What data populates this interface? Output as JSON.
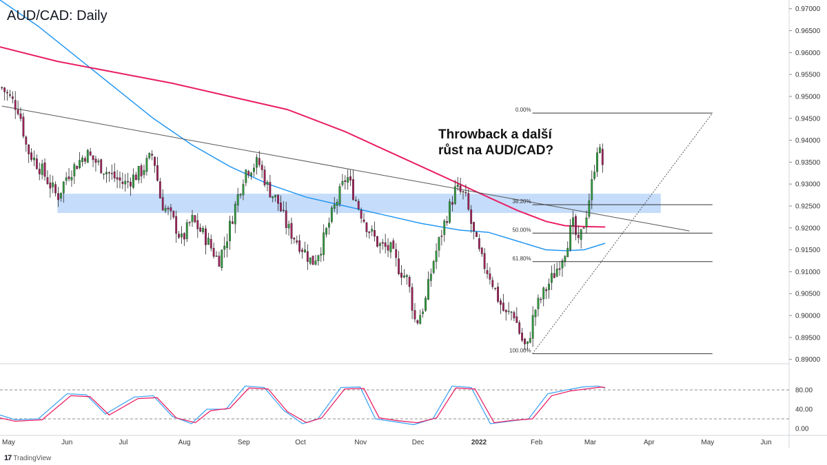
{
  "chart_data": {
    "type": "candlestick",
    "title": "AUD/CAD: Daily",
    "annotation": [
      "Throwback a další",
      "růst na AUD/CAD?"
    ],
    "ylim": [
      0.889,
      0.972
    ],
    "y_ticks": [
      0.97,
      0.965,
      0.96,
      0.955,
      0.95,
      0.945,
      0.94,
      0.935,
      0.93,
      0.925,
      0.92,
      0.915,
      0.91,
      0.905,
      0.9,
      0.895,
      0.89
    ],
    "x_labels": [
      {
        "label": "May",
        "day": 0
      },
      {
        "label": "Jun",
        "day": 31
      },
      {
        "label": "Jul",
        "day": 61
      },
      {
        "label": "Aug",
        "day": 92
      },
      {
        "label": "Sep",
        "day": 123
      },
      {
        "label": "Oct",
        "day": 153
      },
      {
        "label": "Nov",
        "day": 184
      },
      {
        "label": "Dec",
        "day": 214
      },
      {
        "label": "2022",
        "day": 245
      },
      {
        "label": "Feb",
        "day": 276
      },
      {
        "label": "Mar",
        "day": 304
      },
      {
        "label": "Apr",
        "day": 335
      },
      {
        "label": "May",
        "day": 365
      },
      {
        "label": "Jun",
        "day": 396
      }
    ],
    "x_domain": [
      0,
      412
    ],
    "close_path": [
      [
        1,
        0.952
      ],
      [
        10,
        0.947
      ],
      [
        14,
        0.938
      ],
      [
        22,
        0.933
      ],
      [
        30,
        0.927
      ],
      [
        35,
        0.932
      ],
      [
        45,
        0.937
      ],
      [
        58,
        0.932
      ],
      [
        65,
        0.93
      ],
      [
        74,
        0.933
      ],
      [
        80,
        0.937
      ],
      [
        84,
        0.926
      ],
      [
        90,
        0.922
      ],
      [
        95,
        0.917
      ],
      [
        100,
        0.922
      ],
      [
        107,
        0.918
      ],
      [
        114,
        0.9125
      ],
      [
        118,
        0.917
      ],
      [
        124,
        0.927
      ],
      [
        128,
        0.933
      ],
      [
        135,
        0.935
      ],
      [
        140,
        0.929
      ],
      [
        145,
        0.926
      ],
      [
        150,
        0.92
      ],
      [
        157,
        0.916
      ],
      [
        163,
        0.912
      ],
      [
        168,
        0.916
      ],
      [
        174,
        0.924
      ],
      [
        181,
        0.932
      ],
      [
        187,
        0.925
      ],
      [
        192,
        0.92
      ],
      [
        198,
        0.916
      ],
      [
        204,
        0.915
      ],
      [
        208,
        0.911
      ],
      [
        213,
        0.908
      ],
      [
        217,
        0.898
      ],
      [
        222,
        0.903
      ],
      [
        226,
        0.912
      ],
      [
        232,
        0.921
      ],
      [
        238,
        0.929
      ],
      [
        243,
        0.927
      ],
      [
        247,
        0.919
      ],
      [
        251,
        0.913
      ],
      [
        256,
        0.909
      ],
      [
        260,
        0.904
      ],
      [
        264,
        0.9
      ],
      [
        268,
        0.901
      ],
      [
        272,
        0.895
      ],
      [
        275,
        0.892
      ],
      [
        279,
        0.901
      ],
      [
        285,
        0.906
      ],
      [
        290,
        0.91
      ],
      [
        295,
        0.915
      ],
      [
        299,
        0.921
      ],
      [
        302,
        0.916
      ],
      [
        306,
        0.923
      ],
      [
        309,
        0.93
      ],
      [
        312,
        0.939
      ],
      [
        315,
        0.934
      ]
    ],
    "ma_slow": [
      [
        0,
        0.9613
      ],
      [
        30,
        0.958
      ],
      [
        60,
        0.9555
      ],
      [
        90,
        0.953
      ],
      [
        120,
        0.95
      ],
      [
        150,
        0.947
      ],
      [
        180,
        0.942
      ],
      [
        200,
        0.938
      ],
      [
        220,
        0.934
      ],
      [
        240,
        0.93
      ],
      [
        255,
        0.927
      ],
      [
        270,
        0.924
      ],
      [
        285,
        0.9215
      ],
      [
        295,
        0.9205
      ],
      [
        305,
        0.9203
      ],
      [
        316,
        0.9202
      ]
    ],
    "ma_fast": [
      [
        0,
        0.972
      ],
      [
        20,
        0.966
      ],
      [
        40,
        0.959
      ],
      [
        60,
        0.952
      ],
      [
        80,
        0.945
      ],
      [
        100,
        0.939
      ],
      [
        120,
        0.934
      ],
      [
        140,
        0.93
      ],
      [
        160,
        0.927
      ],
      [
        180,
        0.925
      ],
      [
        200,
        0.923
      ],
      [
        220,
        0.921
      ],
      [
        240,
        0.9195
      ],
      [
        255,
        0.919
      ],
      [
        270,
        0.917
      ],
      [
        285,
        0.915
      ],
      [
        295,
        0.9148
      ],
      [
        305,
        0.915
      ],
      [
        316,
        0.9165
      ]
    ],
    "support_zone": {
      "from_day": 30,
      "to_day": 345,
      "low": 0.9234,
      "high": 0.9278
    },
    "trendline": {
      "from": [
        1,
        0.9478
      ],
      "to": [
        360,
        0.9193
      ]
    },
    "fib_levels": [
      {
        "label": "0.00%",
        "value": 0.9462
      },
      {
        "label": "38.20%",
        "value": 0.9253
      },
      {
        "label": "50.00%",
        "value": 0.9188
      },
      {
        "label": "61.80%",
        "value": 0.9123
      },
      {
        "label": "100.00%",
        "value": 0.8913
      }
    ],
    "fib_range": {
      "from_day": 278,
      "to_day": 372
    },
    "fib_diagonal": {
      "from": [
        278,
        0.8913
      ],
      "to": [
        372,
        0.9462
      ]
    },
    "oscillator": {
      "levels": [
        80,
        20
      ],
      "ticks": [
        80.0,
        40.0,
        0.0
      ],
      "k": [
        [
          0,
          28
        ],
        [
          8,
          18
        ],
        [
          20,
          20
        ],
        [
          35,
          72
        ],
        [
          45,
          70
        ],
        [
          55,
          30
        ],
        [
          70,
          65
        ],
        [
          80,
          68
        ],
        [
          90,
          25
        ],
        [
          100,
          10
        ],
        [
          108,
          40
        ],
        [
          118,
          40
        ],
        [
          128,
          88
        ],
        [
          138,
          85
        ],
        [
          148,
          38
        ],
        [
          158,
          10
        ],
        [
          166,
          20
        ],
        [
          178,
          85
        ],
        [
          188,
          86
        ],
        [
          196,
          20
        ],
        [
          206,
          14
        ],
        [
          216,
          8
        ],
        [
          226,
          20
        ],
        [
          236,
          88
        ],
        [
          246,
          85
        ],
        [
          256,
          10
        ],
        [
          266,
          15
        ],
        [
          276,
          20
        ],
        [
          286,
          72
        ],
        [
          296,
          80
        ],
        [
          304,
          86
        ],
        [
          312,
          88
        ],
        [
          316,
          84
        ]
      ],
      "d": [
        [
          0,
          22
        ],
        [
          8,
          15
        ],
        [
          22,
          18
        ],
        [
          37,
          68
        ],
        [
          47,
          66
        ],
        [
          57,
          28
        ],
        [
          72,
          62
        ],
        [
          82,
          64
        ],
        [
          92,
          22
        ],
        [
          102,
          12
        ],
        [
          110,
          37
        ],
        [
          120,
          42
        ],
        [
          130,
          84
        ],
        [
          140,
          82
        ],
        [
          150,
          35
        ],
        [
          160,
          12
        ],
        [
          168,
          22
        ],
        [
          180,
          82
        ],
        [
          190,
          83
        ],
        [
          198,
          22
        ],
        [
          208,
          16
        ],
        [
          218,
          12
        ],
        [
          228,
          22
        ],
        [
          238,
          84
        ],
        [
          248,
          82
        ],
        [
          258,
          12
        ],
        [
          268,
          17
        ],
        [
          278,
          20
        ],
        [
          288,
          68
        ],
        [
          298,
          78
        ],
        [
          306,
          82
        ],
        [
          314,
          86
        ],
        [
          316,
          85
        ]
      ]
    },
    "colors": {
      "up": "#2e9e3e",
      "down": "#a3205a",
      "ma_slow": "#e91e63",
      "ma_fast": "#2196f3",
      "zone": "#c5dcfa",
      "osc_k": "#42a5f5",
      "osc_d": "#e91e63"
    }
  },
  "branding": {
    "label": "TradingView"
  }
}
